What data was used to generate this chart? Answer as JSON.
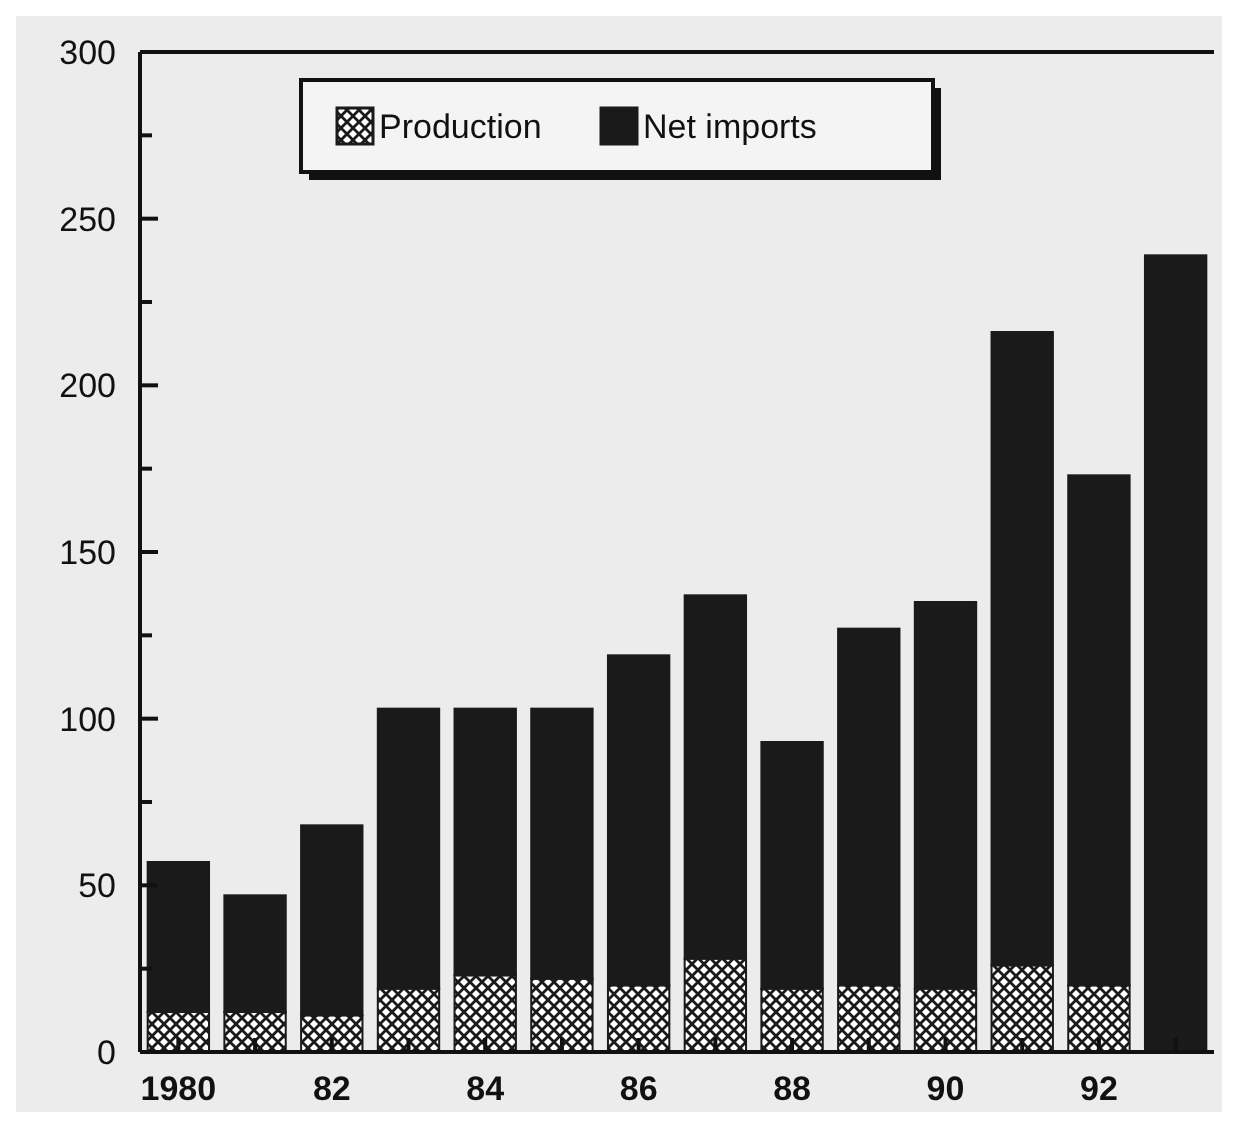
{
  "chart_data": {
    "type": "bar",
    "stacked": true,
    "categories": [
      "1980",
      null,
      "82",
      null,
      "84",
      null,
      "86",
      null,
      "88",
      null,
      "90",
      null,
      "92",
      null
    ],
    "series": [
      {
        "name": "Production",
        "color": "#1a1a1a",
        "values": [
          12,
          12,
          11,
          19,
          23,
          22,
          20,
          28,
          19,
          20,
          19,
          26,
          20,
          null
        ]
      },
      {
        "name": "Net imports",
        "color": "#1a1a1a",
        "values": [
          45,
          35,
          57,
          84,
          80,
          81,
          99,
          109,
          74,
          107,
          116,
          190,
          153,
          239
        ]
      }
    ],
    "ylim": [
      0,
      300
    ],
    "yticks": [
      0,
      {
        "value": 25,
        "label": null
      },
      50,
      {
        "value": 75,
        "label": null
      },
      100,
      {
        "value": 125,
        "label": null
      },
      150,
      {
        "value": 175,
        "label": null
      },
      200,
      {
        "value": 225,
        "label": null
      },
      250,
      {
        "value": 275,
        "label": null
      },
      300
    ],
    "legend": "top",
    "grid": false
  }
}
